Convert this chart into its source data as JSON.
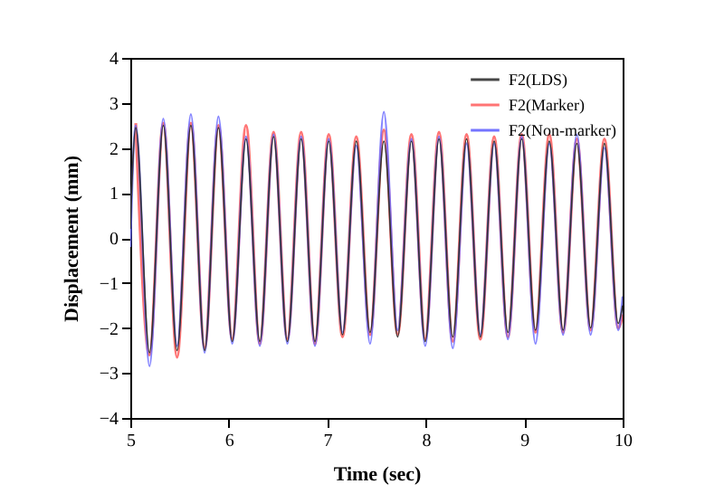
{
  "chart_data": {
    "type": "line",
    "xlabel": "Time (sec)",
    "ylabel": "Displacement (mm)",
    "xlim": [
      5,
      10
    ],
    "xticks": [
      5,
      6,
      7,
      8,
      9,
      10
    ],
    "ylim": [
      -4,
      4
    ],
    "yticks": [
      -4,
      -3,
      -2,
      -1,
      0,
      1,
      2,
      3,
      4
    ],
    "grid": false,
    "legend": "top right",
    "line_style": "solid",
    "x": [
      5.0,
      5.055,
      5.195,
      5.335,
      5.475,
      5.615,
      5.755,
      5.895,
      6.035,
      6.175,
      6.315,
      6.455,
      6.595,
      6.735,
      6.875,
      7.015,
      7.155,
      7.295,
      7.435,
      7.575,
      7.715,
      7.855,
      7.995,
      8.135,
      8.275,
      8.415,
      8.555,
      8.695,
      8.835,
      8.975,
      9.115,
      9.255,
      9.395,
      9.535,
      9.675,
      9.815,
      9.955,
      10.0
    ],
    "series": [
      {
        "name": "F2(LDS)",
        "color": "#333333",
        "values": [
          0.2,
          2.45,
          -2.55,
          2.5,
          -2.5,
          2.5,
          -2.5,
          2.45,
          -2.3,
          2.2,
          -2.3,
          2.25,
          -2.3,
          2.2,
          -2.3,
          2.15,
          -2.15,
          2.15,
          -2.1,
          2.15,
          -2.2,
          2.15,
          -2.3,
          2.2,
          -2.2,
          2.2,
          -2.2,
          2.15,
          -2.1,
          2.2,
          -2.05,
          2.15,
          -2.05,
          2.1,
          -2.0,
          2.1,
          -1.9,
          -1.5
        ]
      },
      {
        "name": "F2(Marker)",
        "color": "#ff6666",
        "values": [
          null,
          2.55,
          -2.6,
          2.55,
          -2.65,
          2.55,
          -2.45,
          2.5,
          -2.25,
          2.5,
          -2.35,
          2.35,
          -2.25,
          2.35,
          -2.35,
          2.3,
          -2.2,
          2.25,
          -2.15,
          2.4,
          -2.15,
          2.3,
          -2.25,
          2.35,
          -2.3,
          2.3,
          -2.25,
          2.25,
          -2.2,
          2.3,
          -2.1,
          2.3,
          -2.1,
          2.2,
          -2.05,
          2.2,
          -2.0,
          -1.7
        ]
      },
      {
        "name": "F2(Non-marker)",
        "color": "#6666ff",
        "values": [
          -0.2,
          2.5,
          -2.85,
          2.65,
          -2.4,
          2.75,
          -2.55,
          2.7,
          -2.35,
          2.25,
          -2.4,
          2.3,
          -2.35,
          2.25,
          -2.4,
          2.2,
          -2.1,
          2.05,
          -2.35,
          2.8,
          -2.05,
          2.2,
          -2.4,
          2.25,
          -2.45,
          2.1,
          -2.15,
          2.1,
          -2.25,
          2.25,
          -2.35,
          2.1,
          -2.15,
          2.3,
          -2.15,
          2.0,
          -2.05,
          -1.3
        ]
      }
    ]
  }
}
